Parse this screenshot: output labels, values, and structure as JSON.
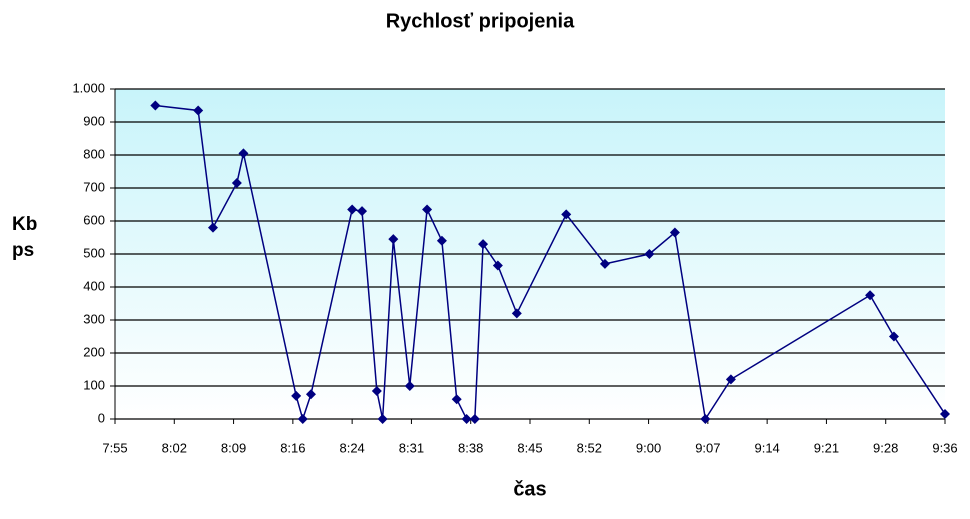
{
  "chart_data": {
    "type": "line",
    "title": "Rychlosť pripojenia",
    "x_label": "čas",
    "y_label": "Kbps",
    "x": [
      479.9,
      485.1,
      486.9,
      489.8,
      490.6,
      497.0,
      497.8,
      498.8,
      503.8,
      505.0,
      506.8,
      507.5,
      508.8,
      510.8,
      512.9,
      514.7,
      516.5,
      517.7,
      518.7,
      519.7,
      521.5,
      523.8,
      529.8,
      534.5,
      539.9,
      543.0,
      546.7,
      549.8,
      566.7,
      569.6,
      575.8
    ],
    "values": [
      950,
      935,
      580,
      715,
      805,
      70,
      0,
      75,
      635,
      630,
      85,
      0,
      545,
      100,
      635,
      540,
      60,
      0,
      0,
      530,
      465,
      320,
      620,
      470,
      500,
      565,
      0,
      120,
      375,
      250,
      15
    ],
    "color": "#000080",
    "xlim": [
      475,
      575.8
    ],
    "xticks": [
      {
        "value": 475,
        "label": "7:55"
      },
      {
        "value": 482.2,
        "label": "8:02"
      },
      {
        "value": 489.4,
        "label": "8:09"
      },
      {
        "value": 496.6,
        "label": "8:16"
      },
      {
        "value": 503.8,
        "label": "8:24"
      },
      {
        "value": 511,
        "label": "8:31"
      },
      {
        "value": 518.2,
        "label": "8:38"
      },
      {
        "value": 525.4,
        "label": "8:45"
      },
      {
        "value": 532.6,
        "label": "8:52"
      },
      {
        "value": 539.8,
        "label": "9:00"
      },
      {
        "value": 547,
        "label": "9:07"
      },
      {
        "value": 554.2,
        "label": "9:14"
      },
      {
        "value": 561.4,
        "label": "9:21"
      },
      {
        "value": 568.6,
        "label": "9:28"
      },
      {
        "value": 575.8,
        "label": "9:36"
      }
    ],
    "ylim": [
      0,
      1000
    ],
    "yticks": [
      0,
      100,
      200,
      300,
      400,
      500,
      600,
      700,
      800,
      900,
      {
        "value": 1000,
        "label": "1.000"
      }
    ],
    "grid": true
  }
}
